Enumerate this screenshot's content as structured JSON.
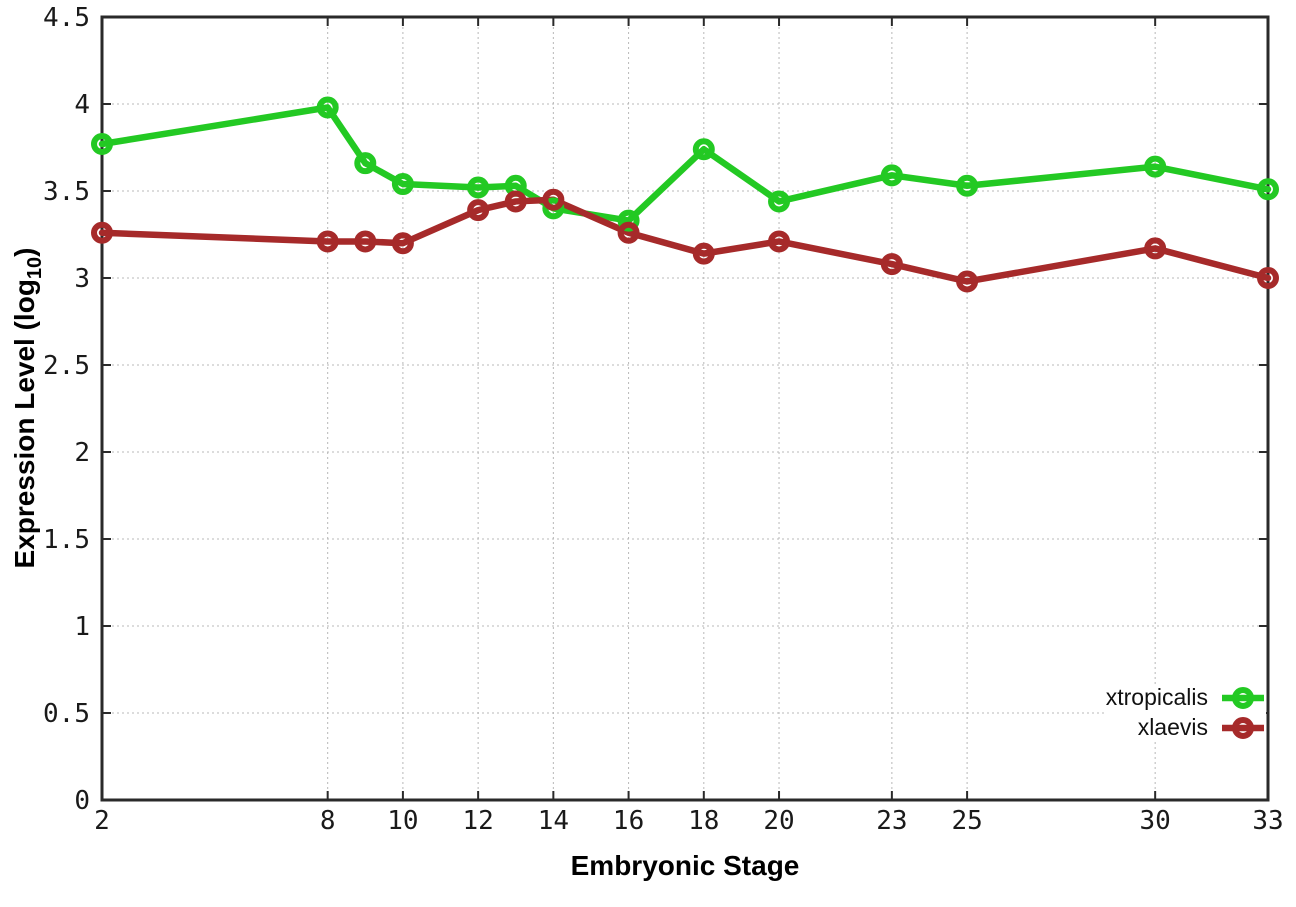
{
  "figure": {
    "xlabel": "Embryonic Stage",
    "ylabel": "Expression Level (log10)",
    "ylabel_prefix": "Expression Level (log",
    "ylabel_sub": "10",
    "ylabel_suffix": ")"
  },
  "chart_data": {
    "type": "line",
    "title": "",
    "xlabel": "Embryonic Stage",
    "ylabel": "Expression Level (log10)",
    "xlim": [
      2,
      33
    ],
    "ylim": [
      0,
      4.5
    ],
    "x_ticks": [
      2,
      8,
      10,
      12,
      14,
      16,
      18,
      20,
      23,
      25,
      30,
      33
    ],
    "y_ticks": [
      0,
      0.5,
      1,
      1.5,
      2,
      2.5,
      3,
      3.5,
      4,
      4.5
    ],
    "grid": true,
    "marker": "open-circle",
    "legend_position": "inside-bottom-right",
    "x": [
      2,
      8,
      9,
      10,
      12,
      13,
      14,
      16,
      18,
      20,
      23,
      25,
      30,
      33
    ],
    "series": [
      {
        "name": "xtropicalis",
        "color": "#23c923",
        "values": [
          3.77,
          3.98,
          3.66,
          3.54,
          3.52,
          3.53,
          3.4,
          3.33,
          3.74,
          3.44,
          3.59,
          3.53,
          3.64,
          3.51
        ]
      },
      {
        "name": "xlaevis",
        "color": "#a62a2a",
        "values": [
          3.26,
          3.21,
          3.21,
          3.2,
          3.39,
          3.44,
          3.45,
          3.26,
          3.14,
          3.21,
          3.08,
          2.98,
          3.17,
          3.0
        ]
      }
    ],
    "colors": {
      "grid": "#b8b8b8",
      "axis": "#2a2a2a",
      "text": "#1a1a1a",
      "background": "#ffffff"
    }
  }
}
